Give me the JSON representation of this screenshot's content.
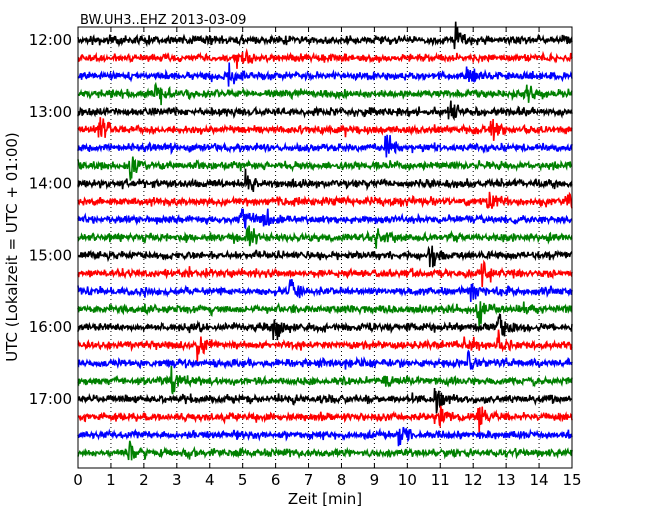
{
  "chart_data": {
    "type": "line",
    "title": "BW.UH3..EHZ 2013-03-09",
    "xlabel": "Zeit  [min]",
    "ylabel": "UTC (Lokalzeit = UTC + 01:00)",
    "xlim": [
      0,
      15
    ],
    "x_ticks": [
      "0",
      "1",
      "2",
      "3",
      "4",
      "5",
      "6",
      "7",
      "8",
      "9",
      "10",
      "11",
      "12",
      "13",
      "14",
      "15"
    ],
    "y_tick_labels": [
      "12:00",
      "13:00",
      "14:00",
      "15:00",
      "16:00",
      "17:00"
    ],
    "trace_interval_min": 15,
    "start_time": "12:00",
    "colors": [
      "#000000",
      "#ff0000",
      "#0000ff",
      "#008000"
    ],
    "grid": "dotted vertical lines every minute",
    "series": [
      {
        "start": "12:00",
        "events_min": [
          11.5
        ]
      },
      {
        "start": "12:15",
        "events_min": [
          4.9
        ]
      },
      {
        "start": "12:30",
        "events_min": [
          4.6,
          11.8
        ]
      },
      {
        "start": "12:45",
        "events_min": [
          2.4,
          13.6
        ]
      },
      {
        "start": "13:00",
        "events_min": [
          11.3
        ]
      },
      {
        "start": "13:15",
        "events_min": [
          0.7,
          12.6
        ]
      },
      {
        "start": "13:30",
        "events_min": [
          9.4
        ]
      },
      {
        "start": "13:45",
        "events_min": [
          1.6
        ]
      },
      {
        "start": "14:00",
        "events_min": [
          5.1
        ]
      },
      {
        "start": "14:15",
        "events_min": [
          12.5,
          14.9
        ]
      },
      {
        "start": "14:30",
        "events_min": [
          5.0,
          5.6
        ]
      },
      {
        "start": "14:45",
        "events_min": [
          5.2,
          9.1
        ]
      },
      {
        "start": "15:00",
        "events_min": [
          10.7
        ]
      },
      {
        "start": "15:15",
        "events_min": [
          12.3
        ]
      },
      {
        "start": "15:30",
        "events_min": [
          6.5,
          12.0
        ]
      },
      {
        "start": "15:45",
        "events_min": [
          12.2
        ]
      },
      {
        "start": "16:00",
        "events_min": [
          6.0,
          12.8
        ]
      },
      {
        "start": "16:15",
        "events_min": [
          3.7,
          11.8,
          12.8
        ]
      },
      {
        "start": "16:30",
        "events_min": [
          11.9
        ]
      },
      {
        "start": "16:45",
        "events_min": [
          2.9,
          9.3
        ]
      },
      {
        "start": "17:00",
        "events_min": [
          10.9
        ]
      },
      {
        "start": "17:15",
        "events_min": [
          11.0,
          12.2
        ]
      },
      {
        "start": "17:30",
        "events_min": [
          9.8
        ]
      },
      {
        "start": "17:45",
        "events_min": [
          1.6
        ]
      }
    ]
  }
}
